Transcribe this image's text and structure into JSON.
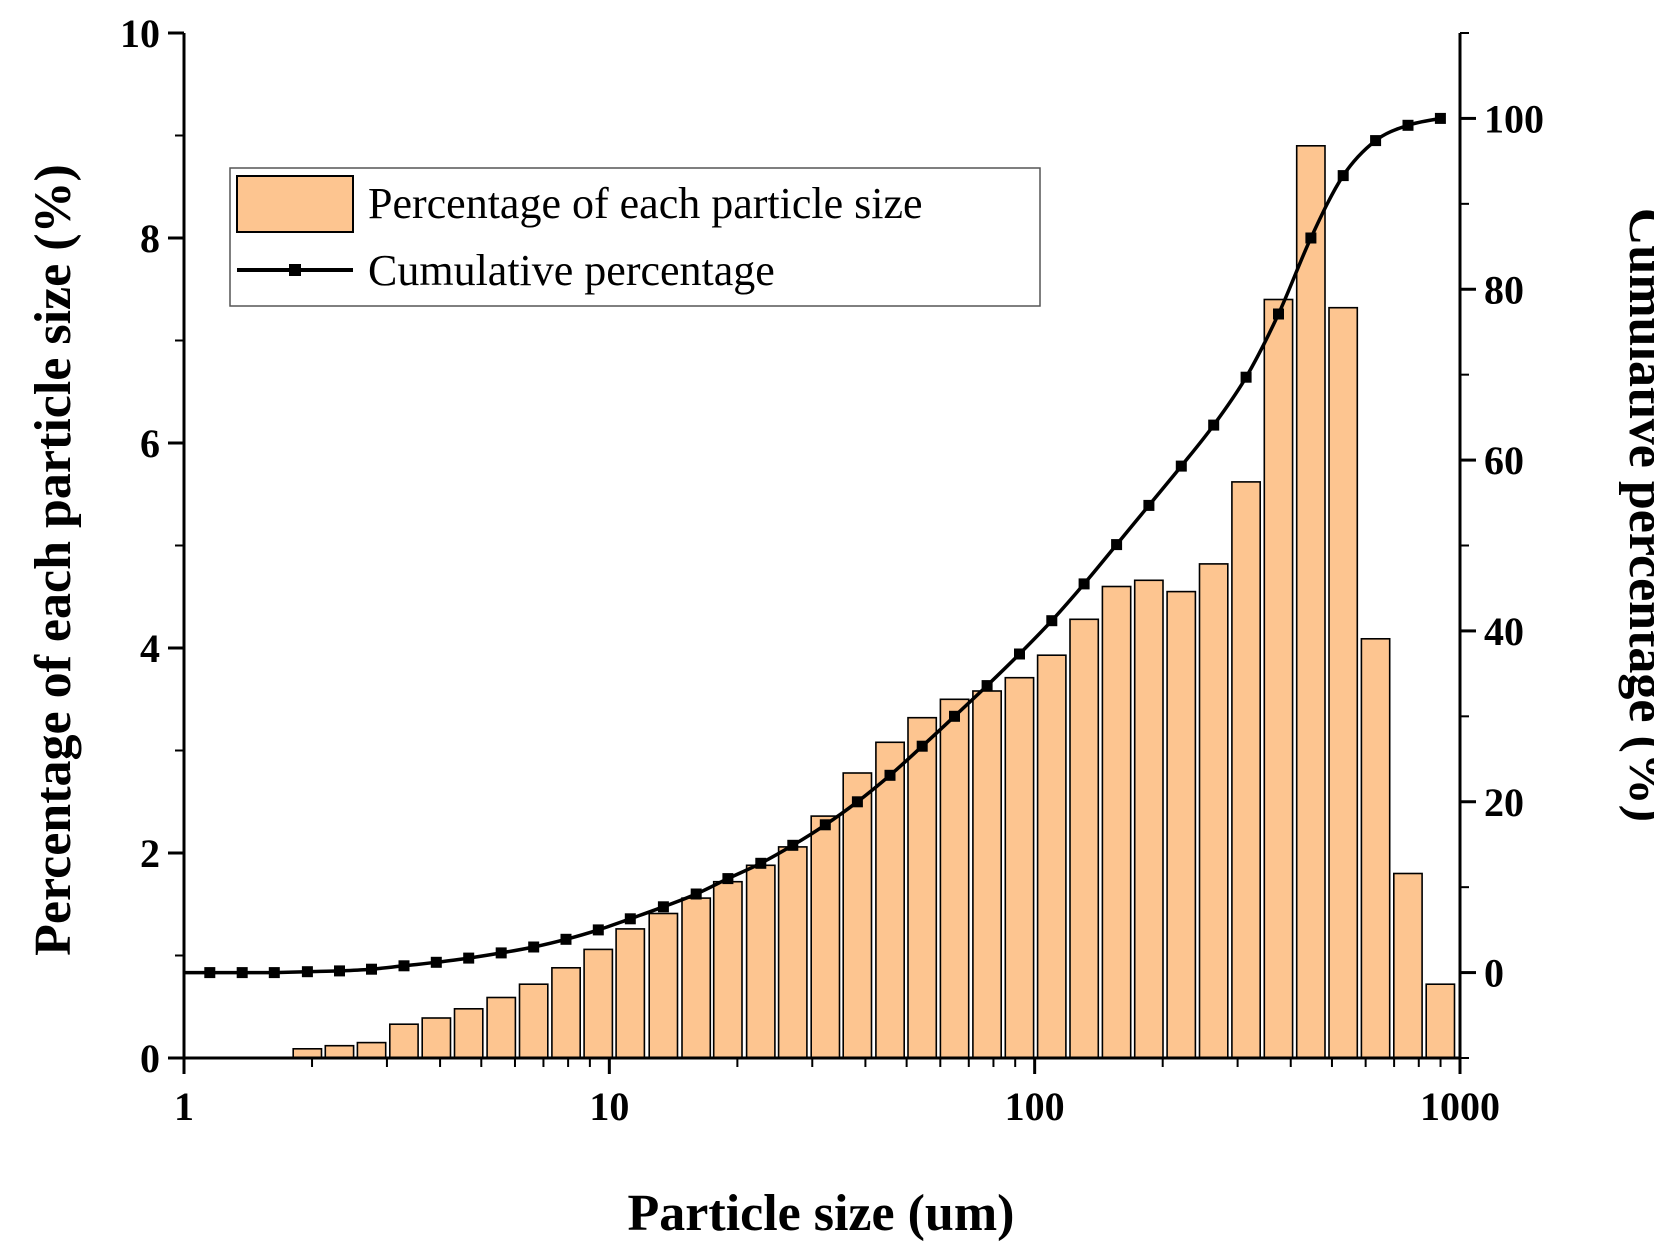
{
  "chart_data": {
    "type": "bar+line",
    "x_scale": "log",
    "xlim": [
      1,
      1000
    ],
    "xlabel": "Particle size (um)",
    "x_ticks": [
      "1",
      "10",
      "100",
      "1000"
    ],
    "ylabel_left": "Percentage of each particle size (%)",
    "ylim_left": [
      0,
      10
    ],
    "y_ticks_left": [
      "0",
      "2",
      "4",
      "6",
      "8",
      "10"
    ],
    "ylabel_right": "Cumulative percentage (%)",
    "ylim_right": [
      -10,
      110
    ],
    "y_ticks_right": [
      "0",
      "20",
      "40",
      "60",
      "80",
      "100"
    ],
    "legend": {
      "placement": "top-left",
      "bar_label": "Percentage of each particle size",
      "line_label": "Cumulative percentage"
    },
    "bars": {
      "name": "Percentage of each particle size",
      "x": [
        1.15,
        1.37,
        1.63,
        1.95,
        2.32,
        2.76,
        3.29,
        3.92,
        4.67,
        5.57,
        6.64,
        7.91,
        9.42,
        11.2,
        13.4,
        16.0,
        19.0,
        22.7,
        27.0,
        32.2,
        38.3,
        45.7,
        54.4,
        64.8,
        77.3,
        92.1,
        109.7,
        130.7,
        155.8,
        185.6,
        221.2,
        263.6,
        314.1,
        374.3,
        446.0,
        531.4,
        633.2,
        754.5,
        899.1
      ],
      "values": [
        0,
        0,
        0,
        0.09,
        0.12,
        0.15,
        0.33,
        0.39,
        0.48,
        0.59,
        0.72,
        0.88,
        1.06,
        1.26,
        1.41,
        1.56,
        1.72,
        1.88,
        2.06,
        2.36,
        2.78,
        3.08,
        3.32,
        3.5,
        3.58,
        3.71,
        3.93,
        4.28,
        4.6,
        4.66,
        4.55,
        4.82,
        5.62,
        7.4,
        8.9,
        7.32,
        4.09,
        1.8,
        0.72
      ],
      "fill": "#fdc590",
      "stroke": "#000000"
    },
    "line": {
      "name": "Cumulative percentage",
      "x": [
        1.15,
        1.37,
        1.63,
        1.95,
        2.32,
        2.76,
        3.29,
        3.92,
        4.67,
        5.57,
        6.64,
        7.91,
        9.42,
        11.2,
        13.4,
        16.0,
        19.0,
        22.7,
        27.0,
        32.2,
        38.3,
        45.7,
        54.4,
        64.8,
        77.3,
        92.1,
        109.7,
        130.7,
        155.8,
        185.6,
        221.2,
        263.6,
        314.1,
        374.3,
        446.0,
        531.4,
        633.2,
        754.5,
        899.1
      ],
      "values": [
        0,
        0,
        0,
        0.1,
        0.2,
        0.4,
        0.8,
        1.2,
        1.7,
        2.3,
        3.0,
        3.9,
        5.0,
        6.3,
        7.7,
        9.2,
        11.0,
        12.8,
        14.9,
        17.3,
        20.0,
        23.1,
        26.5,
        30.0,
        33.6,
        37.3,
        41.2,
        45.5,
        50.1,
        54.7,
        59.3,
        64.1,
        69.7,
        77.1,
        86.0,
        93.3,
        97.4,
        99.2,
        100.0
      ],
      "color": "#000000"
    }
  }
}
